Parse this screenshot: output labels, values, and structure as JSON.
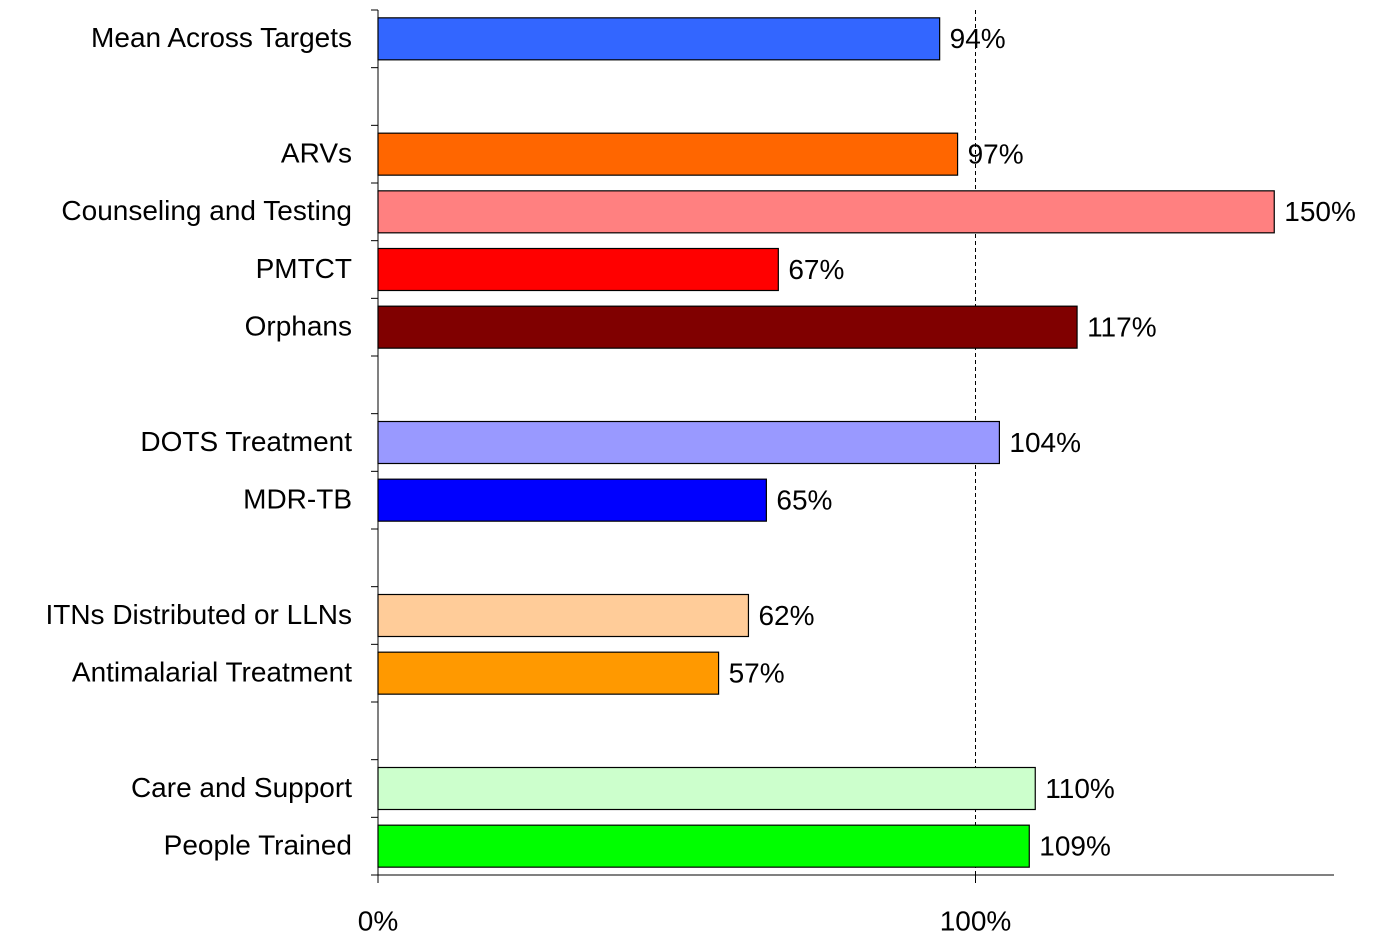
{
  "chart_data": {
    "type": "bar",
    "orientation": "horizontal",
    "categories": [
      "Mean Across Targets",
      null,
      "ARVs",
      "Counseling and Testing",
      "PMTCT",
      "Orphans",
      null,
      "DOTS Treatment",
      "MDR-TB",
      null,
      "ITNs Distributed or LLNs",
      "Antimalarial Treatment",
      null,
      "Care and Support",
      "People Trained"
    ],
    "values": [
      94,
      null,
      97,
      150,
      67,
      117,
      null,
      104,
      65,
      null,
      62,
      57,
      null,
      110,
      109
    ],
    "value_labels": [
      "94%",
      null,
      "97%",
      "150%",
      "67%",
      "117%",
      null,
      "104%",
      "65%",
      null,
      "62%",
      "57%",
      null,
      "110%",
      "109%"
    ],
    "colors": [
      "#3366ff",
      null,
      "#ff6600",
      "#ff8080",
      "#ff0000",
      "#800000",
      null,
      "#9999ff",
      "#0000ff",
      null,
      "#ffcc99",
      "#ff9900",
      null,
      "#ccffcc",
      "#00ff00"
    ],
    "xlim": [
      0,
      160
    ],
    "xticks": [
      {
        "value": 0,
        "label": "0%"
      },
      {
        "value": 100,
        "label": "100%"
      }
    ],
    "grid": true
  }
}
